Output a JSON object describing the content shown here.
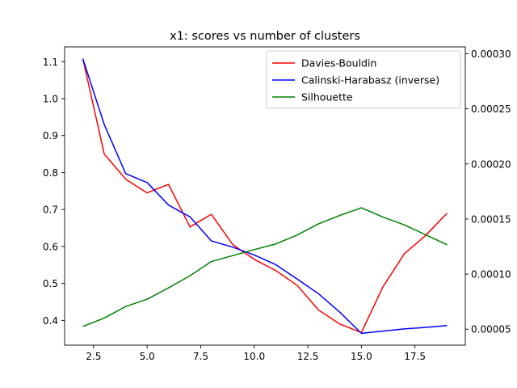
{
  "chart_data": {
    "type": "line",
    "title": "x1: scores vs number of clusters",
    "xlabel": "",
    "ylabel": "",
    "x": [
      2,
      3,
      4,
      5,
      6,
      7,
      8,
      9,
      10,
      11,
      12,
      13,
      14,
      15,
      16,
      17,
      18,
      19
    ],
    "xlim": [
      1.15,
      19.85
    ],
    "xticks": [
      2.5,
      5.0,
      7.5,
      10.0,
      12.5,
      15.0,
      17.5
    ],
    "xtick_labels": [
      "2.5",
      "5.0",
      "7.5",
      "10.0",
      "12.5",
      "15.0",
      "17.5"
    ],
    "ylim": [
      0.333,
      1.14
    ],
    "yticks": [
      0.4,
      0.5,
      0.6,
      0.7,
      0.8,
      0.9,
      1.0,
      1.1
    ],
    "ytick_labels": [
      "0.4",
      "0.5",
      "0.6",
      "0.7",
      "0.8",
      "0.9",
      "1.0",
      "1.1"
    ],
    "y2lim": [
      3.55e-05,
      0.0003062
    ],
    "y2ticks": [
      5e-05,
      0.0001,
      0.00015,
      0.0002,
      0.00025,
      0.0003
    ],
    "y2tick_labels": [
      "0.00005",
      "0.00010",
      "0.00015",
      "0.00020",
      "0.00025",
      "0.00030"
    ],
    "grid": false,
    "legend_position": "top-right",
    "series": [
      {
        "name": "Davies-Bouldin",
        "color": "#ff0000",
        "axis": "left",
        "values": [
          1.108,
          0.85,
          0.782,
          0.745,
          0.768,
          0.653,
          0.687,
          0.605,
          0.565,
          0.535,
          0.495,
          0.428,
          0.39,
          0.367,
          0.49,
          0.58,
          0.63,
          0.69
        ]
      },
      {
        "name": "Calinski-Harabasz (inverse)",
        "color": "#0000ff",
        "axis": "left",
        "values": [
          1.108,
          0.93,
          0.797,
          0.773,
          0.712,
          0.68,
          0.615,
          0.598,
          0.577,
          0.551,
          0.512,
          0.472,
          0.422,
          0.365,
          0.371,
          0.377,
          0.381,
          0.386
        ]
      },
      {
        "name": "Silhouette",
        "color": "#008000",
        "axis": "right",
        "values": [
          5.25e-05,
          6.01e-05,
          7.06e-05,
          7.72e-05,
          8.75e-05,
          9.85e-05,
          0.0001114,
          0.0001168,
          0.0001222,
          0.0001273,
          0.0001354,
          0.0001456,
          0.0001533,
          0.0001602,
          0.0001518,
          0.0001447,
          0.0001357,
          0.0001266
        ]
      }
    ]
  }
}
